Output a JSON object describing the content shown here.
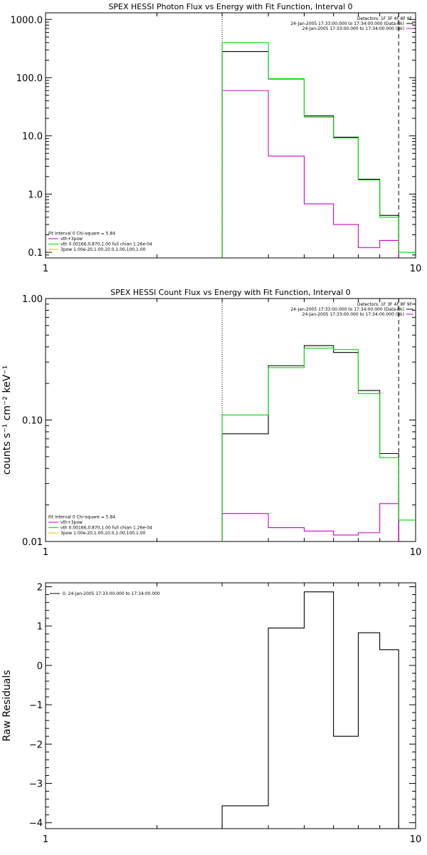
{
  "chart_data": [
    {
      "type": "line",
      "title": "SPEX HESSI Photon Flux vs Energy with Fit Function, Interval 0",
      "xlabel": "",
      "ylabel": "",
      "xscale": "log",
      "yscale": "log",
      "xlim": [
        1,
        10
      ],
      "ylim": [
        0.08,
        1300
      ],
      "x_ticks": [
        {
          "value": 1,
          "label": "1"
        },
        {
          "value": 10,
          "label": "10"
        }
      ],
      "y_ticks": [
        {
          "value": 0.1,
          "label": "0.1"
        },
        {
          "value": 1,
          "label": "1.0"
        },
        {
          "value": 10,
          "label": "10.0"
        },
        {
          "value": 100,
          "label": "100.0"
        },
        {
          "value": 1000,
          "label": "1000.0"
        }
      ],
      "bin_edges": [
        3,
        4,
        5,
        6,
        7,
        8,
        9,
        10
      ],
      "vlines": [
        {
          "x": 3,
          "style": "dotted"
        },
        {
          "x": 9,
          "style": "dashed"
        }
      ],
      "series": [
        {
          "name": "",
          "color": "#000000",
          "values": [
            280,
            95,
            22,
            9.5,
            1.8,
            0.43,
            null
          ]
        },
        {
          "name": "vth+3pow",
          "color": "#cc00cc",
          "values": [
            60,
            4.5,
            0.68,
            0.3,
            0.12,
            0.16,
            null
          ]
        },
        {
          "name": "vth 0.00166,0.870,1.00 full chian 1.26e-04",
          "color": "#00dd00",
          "values": [
            400,
            96,
            21,
            9.2,
            1.75,
            0.4,
            0.1
          ]
        }
      ],
      "legend_top_right": [
        {
          "text": "Detectors: 1F 3F 4F 8F 9F",
          "color": ""
        },
        {
          "text": "24-Jan-2005 17:33:00.000 to 17:34:00.000 (Data-Bk)",
          "color": "#000000"
        },
        {
          "text": "24-Jan-2005 17:33:00.000 to 17:34:00.000 (Bk)",
          "color": "#cc00cc"
        }
      ],
      "legend_bottom_left": [
        {
          "text": "Fit Interval 0   Chi-square = 5.84",
          "color": ""
        },
        {
          "text": "vth+3pow",
          "color": "#cc00cc"
        },
        {
          "text": "vth 0.00166,0.870,1.00  full chian 1.26e-04",
          "color": "#00dd00"
        },
        {
          "text": "3pow 1.00e-20,1.00,10.0,1.00,100,1.00",
          "color": "#e8b800"
        }
      ]
    },
    {
      "type": "line",
      "title": "SPEX HESSI Count Flux vs Energy with Fit Function, Interval 0",
      "xlabel": "",
      "ylabel": "counts s⁻¹ cm⁻² keV⁻¹",
      "xscale": "log",
      "yscale": "log",
      "xlim": [
        1,
        10
      ],
      "ylim": [
        0.01,
        1.0
      ],
      "x_ticks": [
        {
          "value": 1,
          "label": "1"
        },
        {
          "value": 10,
          "label": "10"
        }
      ],
      "y_ticks": [
        {
          "value": 0.01,
          "label": "0.01"
        },
        {
          "value": 0.1,
          "label": "0.10"
        },
        {
          "value": 1,
          "label": "1.00"
        }
      ],
      "bin_edges": [
        3,
        4,
        5,
        6,
        7,
        8,
        9,
        10
      ],
      "vlines": [
        {
          "x": 3,
          "style": "dotted"
        },
        {
          "x": 9,
          "style": "dashed"
        }
      ],
      "series": [
        {
          "name": "",
          "color": "#000000",
          "values": [
            0.077,
            0.28,
            0.41,
            0.36,
            0.175,
            0.053,
            null
          ]
        },
        {
          "name": "",
          "color": "#cc00cc",
          "values": [
            0.017,
            0.013,
            0.0122,
            0.0113,
            0.0118,
            0.0205,
            null
          ]
        },
        {
          "name": "",
          "color": "#00dd00",
          "values": [
            0.11,
            0.27,
            0.39,
            0.38,
            0.165,
            0.049,
            0.015
          ]
        }
      ],
      "legend_top_right": [
        {
          "text": "Detectors: 1F 3F 4F 8F 9F",
          "color": ""
        },
        {
          "text": "24-Jan-2005 17:33:00.000 to 17:34:00.000 (Data-Bk)",
          "color": "#000000"
        },
        {
          "text": "24-Jan-2005 17:33:00.000 to 17:34:00.000 (Bk)",
          "color": "#cc00cc"
        }
      ],
      "legend_bottom_left": [
        {
          "text": "Fit Interval 0   Chi-square = 5.84",
          "color": ""
        },
        {
          "text": "vth+3pow",
          "color": "#cc00cc"
        },
        {
          "text": "vth 0.00166,0.870,1.00  full chian 1.26e-04",
          "color": "#00dd00"
        },
        {
          "text": "3pow 1.00e-20,1.00,10.0,1.00,100,1.00",
          "color": "#e8b800"
        }
      ]
    },
    {
      "type": "line",
      "title": "",
      "xlabel": "",
      "ylabel": "Raw Residuals",
      "xscale": "log",
      "yscale": "linear",
      "xlim": [
        1,
        10
      ],
      "ylim": [
        -4.15,
        2.1
      ],
      "x_ticks": [
        {
          "value": 1,
          "label": "1"
        },
        {
          "value": 10,
          "label": "10"
        }
      ],
      "y_ticks": [
        {
          "value": -4,
          "label": "−4"
        },
        {
          "value": -3,
          "label": "−3"
        },
        {
          "value": -2,
          "label": "−2"
        },
        {
          "value": -1,
          "label": "−1"
        },
        {
          "value": 0,
          "label": "0"
        },
        {
          "value": 1,
          "label": "1"
        },
        {
          "value": 2,
          "label": "2"
        }
      ],
      "bin_edges": [
        3,
        4,
        5,
        6,
        7,
        8,
        9
      ],
      "vlines": [],
      "series": [
        {
          "name": "0, 24-Jan-2005 17:33:00.000 to 17:34:00.000",
          "color": "#000000",
          "values": [
            -3.57,
            0.95,
            1.87,
            -1.8,
            0.83,
            0.4
          ]
        }
      ],
      "legend_top_right": [],
      "legend_bottom_left": [],
      "legend_top_left": [
        {
          "text": "0, 24-Jan-2005 17:33:00.000 to 17:34:00.000",
          "color": "#000000"
        }
      ]
    }
  ]
}
